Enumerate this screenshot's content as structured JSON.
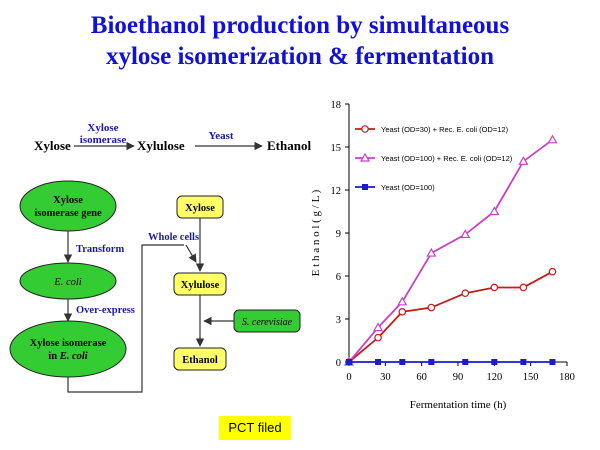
{
  "title": {
    "line1": "Bioethanol production by simultaneous",
    "line2": "xylose isomerization & fermentation"
  },
  "flow": {
    "xylose": "Xylose",
    "enzyme_line1": "Xylose",
    "enzyme_line2": "isomerase",
    "xylulose": "Xylulose",
    "yeast": "Yeast",
    "ethanol": "Ethanol"
  },
  "diagram": {
    "gene_line1": "Xylose",
    "gene_line2": "isomerase gene",
    "transform": "Transform",
    "ecoli": "E. coli",
    "overexpress": "Over-express",
    "iso_line1": "Xylose isomerase",
    "iso_line2_a": "in ",
    "iso_line2_b": "E. coli",
    "whole_cells": "Whole cells",
    "xylose": "Xylose",
    "xylulose": "Xylulose",
    "scerevisiae": "S. cerevisiae",
    "ethanol": "Ethanol"
  },
  "pct_label": "PCT filed",
  "colors": {
    "title": "#1010d8",
    "flow_label": "#1a1aa0",
    "oval_fill": "#33cc33",
    "box_fill": "#ffff66",
    "series1": "#c81a1a",
    "series2": "#c840c8",
    "series3": "#1a1ad0"
  },
  "chart_data": {
    "type": "line",
    "xlabel": "Fermentation time (h)",
    "ylabel": "E t h a n o l   ( g / L )",
    "xlim": [
      0,
      180
    ],
    "ylim": [
      0,
      18
    ],
    "xticks": [
      0,
      30,
      60,
      90,
      120,
      150,
      180
    ],
    "yticks": [
      0,
      3,
      6,
      9,
      12,
      15,
      18
    ],
    "legend_position": "top-left",
    "grid": false,
    "series": [
      {
        "name": "Yeast (OD=30) + Rec. E. coli (OD=12)",
        "marker": "circle",
        "color": "#c81a1a",
        "x": [
          0,
          24,
          44,
          68,
          96,
          120,
          144,
          168
        ],
        "y": [
          0,
          1.7,
          3.5,
          3.8,
          4.8,
          5.2,
          5.2,
          6.3
        ]
      },
      {
        "name": "Yeast  (OD=100) + Rec. E. coli (OD=12)",
        "marker": "triangle",
        "color": "#c840c8",
        "x": [
          0,
          24,
          44,
          68,
          96,
          120,
          144,
          168
        ],
        "y": [
          0,
          2.4,
          4.2,
          7.6,
          8.9,
          10.5,
          14.0,
          15.5
        ]
      },
      {
        "name": "Yeast (OD=100)",
        "marker": "square",
        "color": "#1a1ad0",
        "x": [
          0,
          24,
          44,
          68,
          96,
          120,
          144,
          168
        ],
        "y": [
          0,
          0,
          0,
          0,
          0,
          0,
          0,
          0
        ]
      }
    ]
  }
}
